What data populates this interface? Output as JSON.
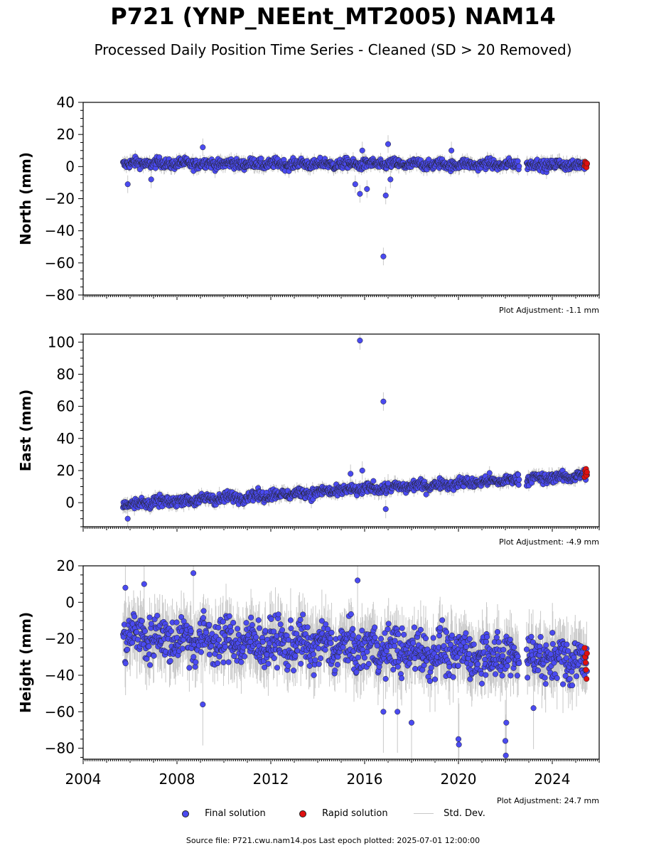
{
  "header": {
    "title": "P721 (YNP_NEEnt_MT2005) NAM14",
    "subtitle": "Processed Daily Position Time Series - Cleaned (SD > 20 Removed)"
  },
  "footer": {
    "source": "Source file: P721.cwu.nam14.pos  Last epoch plotted: 2025-07-01 12:00:00"
  },
  "colors": {
    "final": "#4a4af0",
    "rapid": "#e01010",
    "std": "#c8c8c8"
  },
  "chart_data": [
    {
      "type": "scatter",
      "ylabel": "North (mm)",
      "ylim": [
        -80,
        40
      ],
      "yticks": [
        40,
        20,
        0,
        -20,
        -40,
        -60,
        -80
      ],
      "xlim": [
        2004,
        2026
      ],
      "annotation": "Plot Adjustment: -1.1 mm",
      "trend": [
        [
          2005.7,
          2.0
        ],
        [
          2025.5,
          1.0
        ]
      ],
      "noise": 2.2,
      "outliers": [
        [
          2005.9,
          -11
        ],
        [
          2006.9,
          -8
        ],
        [
          2009.1,
          12
        ],
        [
          2015.6,
          -11
        ],
        [
          2015.8,
          -17
        ],
        [
          2016.1,
          -14
        ],
        [
          2015.9,
          10
        ],
        [
          2016.8,
          -56
        ],
        [
          2016.9,
          -18
        ],
        [
          2017.0,
          14
        ],
        [
          2017.1,
          -8
        ],
        [
          2019.7,
          10
        ]
      ],
      "rapid": [
        [
          2025.38,
          0.5
        ],
        [
          2025.4,
          3.0
        ],
        [
          2025.42,
          1.5
        ],
        [
          2025.44,
          2.5
        ],
        [
          2025.46,
          -0.5
        ],
        [
          2025.48,
          2.0
        ]
      ]
    },
    {
      "type": "scatter",
      "ylabel": "East (mm)",
      "ylim": [
        -15,
        105
      ],
      "yticks": [
        100,
        80,
        60,
        40,
        20,
        0
      ],
      "xlim": [
        2004,
        2026
      ],
      "annotation": "Plot Adjustment: -4.9 mm",
      "trend": [
        [
          2005.7,
          -1.0
        ],
        [
          2025.5,
          17.0
        ]
      ],
      "noise": 2.3,
      "outliers": [
        [
          2005.9,
          -10
        ],
        [
          2015.4,
          18
        ],
        [
          2015.8,
          101
        ],
        [
          2015.9,
          20
        ],
        [
          2016.8,
          63
        ],
        [
          2016.9,
          -4
        ],
        [
          2017.0,
          12
        ]
      ],
      "rapid": [
        [
          2025.38,
          16
        ],
        [
          2025.4,
          20
        ],
        [
          2025.42,
          18
        ],
        [
          2025.44,
          21
        ],
        [
          2025.46,
          17
        ],
        [
          2025.48,
          19
        ]
      ]
    },
    {
      "type": "scatter",
      "ylabel": "Height (mm)",
      "ylim": [
        -86,
        20
      ],
      "yticks": [
        20,
        0,
        -20,
        -40,
        -60,
        -80
      ],
      "xlim": [
        2004,
        2026
      ],
      "xticks": [
        2004,
        2008,
        2012,
        2016,
        2020,
        2024
      ],
      "annotation": "Plot Adjustment: 24.7 mm",
      "trend": [
        [
          2005.7,
          -18.0
        ],
        [
          2025.5,
          -32.0
        ]
      ],
      "noise": 9.0,
      "outliers": [
        [
          2005.8,
          8
        ],
        [
          2006.6,
          10
        ],
        [
          2008.7,
          16
        ],
        [
          2015.7,
          12
        ],
        [
          2016.8,
          -60
        ],
        [
          2017.4,
          -60
        ],
        [
          2018.0,
          -66
        ],
        [
          2020.0,
          -75
        ],
        [
          2020.02,
          -78
        ],
        [
          2022.0,
          -76
        ],
        [
          2022.02,
          -84
        ],
        [
          2022.04,
          -66
        ],
        [
          2009.1,
          -56
        ],
        [
          2023.2,
          -58
        ]
      ],
      "rapid": [
        [
          2025.38,
          -25
        ],
        [
          2025.4,
          -30
        ],
        [
          2025.42,
          -33
        ],
        [
          2025.44,
          -37
        ],
        [
          2025.46,
          -42
        ],
        [
          2025.48,
          -28
        ]
      ]
    }
  ],
  "legend": {
    "final": "Final solution",
    "rapid": "Rapid solution",
    "std": "Std. Dev."
  }
}
